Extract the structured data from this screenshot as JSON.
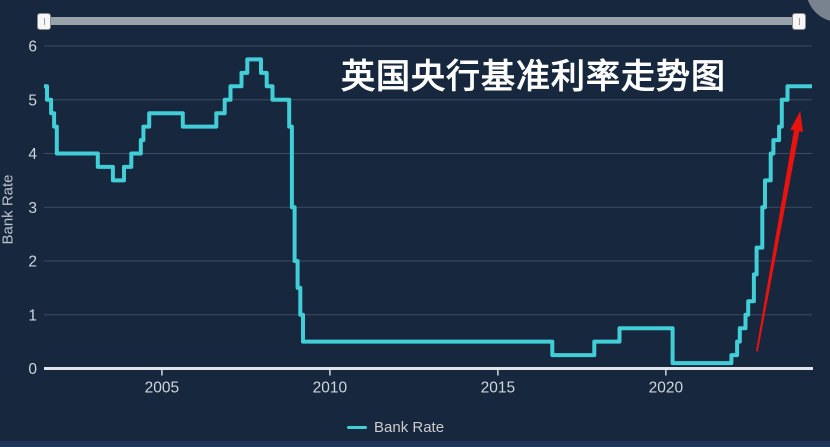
{
  "header": {
    "title": "英国央行基准利率走势图"
  },
  "y_axis": {
    "title": "Bank Rate"
  },
  "legend": {
    "label": "Bank Rate"
  },
  "colors": {
    "background": "#16273E",
    "line": "#41CED6",
    "grid": "#3B4C63",
    "axis_line": "#DFE5EA",
    "tick_label": "#CFD6DE",
    "title_text": "#FFFFFF",
    "arrow": "#E8120E",
    "navigator_track": "#98A2AB",
    "navigator_handle": "#F6F6F6",
    "bottom_bar": "#1D3659",
    "corner_circle": "#7E8894"
  },
  "chart_data": {
    "type": "line",
    "step": true,
    "title": "英国央行基准利率走势图",
    "xlabel": "",
    "ylabel": "Bank Rate",
    "xlim": [
      2001.49,
      2024.35
    ],
    "ylim": [
      0,
      6
    ],
    "xticks": [
      2005,
      2010,
      2015,
      2020
    ],
    "yticks": [
      0,
      1,
      2,
      3,
      4,
      5,
      6
    ],
    "grid": true,
    "legend_position": "bottom",
    "series": [
      {
        "name": "Bank Rate",
        "color": "#41CED6",
        "points": [
          [
            2001.49,
            5.25
          ],
          [
            2001.58,
            5.0
          ],
          [
            2001.7,
            4.75
          ],
          [
            2001.79,
            4.5
          ],
          [
            2001.87,
            4.0
          ],
          [
            2003.09,
            3.75
          ],
          [
            2003.54,
            3.5
          ],
          [
            2003.87,
            3.75
          ],
          [
            2004.09,
            4.0
          ],
          [
            2004.37,
            4.25
          ],
          [
            2004.45,
            4.5
          ],
          [
            2004.62,
            4.75
          ],
          [
            2005.62,
            4.5
          ],
          [
            2006.62,
            4.75
          ],
          [
            2006.87,
            5.0
          ],
          [
            2007.04,
            5.25
          ],
          [
            2007.37,
            5.5
          ],
          [
            2007.54,
            5.75
          ],
          [
            2007.95,
            5.5
          ],
          [
            2008.12,
            5.25
          ],
          [
            2008.29,
            5.0
          ],
          [
            2008.79,
            4.5
          ],
          [
            2008.87,
            3.0
          ],
          [
            2008.95,
            2.0
          ],
          [
            2009.04,
            1.5
          ],
          [
            2009.12,
            1.0
          ],
          [
            2009.2,
            0.5
          ],
          [
            2016.62,
            0.25
          ],
          [
            2017.87,
            0.5
          ],
          [
            2018.62,
            0.75
          ],
          [
            2020.2,
            0.1
          ],
          [
            2021.95,
            0.25
          ],
          [
            2022.12,
            0.5
          ],
          [
            2022.2,
            0.75
          ],
          [
            2022.37,
            1.0
          ],
          [
            2022.45,
            1.25
          ],
          [
            2022.62,
            1.75
          ],
          [
            2022.7,
            2.25
          ],
          [
            2022.87,
            3.0
          ],
          [
            2022.95,
            3.5
          ],
          [
            2023.12,
            4.0
          ],
          [
            2023.2,
            4.25
          ],
          [
            2023.37,
            4.5
          ],
          [
            2023.45,
            5.0
          ],
          [
            2023.62,
            5.25
          ],
          [
            2024.35,
            5.25
          ]
        ]
      }
    ],
    "annotations": [
      {
        "type": "arrow",
        "color": "#E8120E",
        "from": [
          2022.71,
          0.32
        ],
        "to": [
          2024.0,
          4.79
        ]
      }
    ]
  }
}
